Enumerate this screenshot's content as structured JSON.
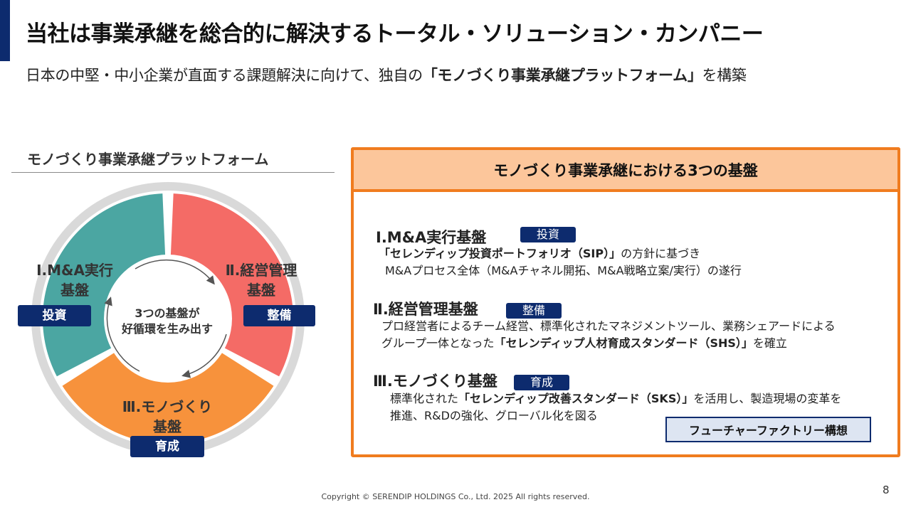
{
  "header": {
    "title": "当社は事業承継を総合的に解決するトータル・ソリューション・カンパニー",
    "subtitle_pre": "日本の中堅・中小企業が直面する課題解決に向けて、独自の",
    "subtitle_bold": "「モノづくり事業承継プラットフォーム」",
    "subtitle_post": "を構築"
  },
  "left": {
    "heading": "モノづくり事業承継プラットフォーム",
    "center_line1": "3つの基盤が",
    "center_line2": "好循環を生み出す",
    "segments": [
      {
        "line1": "Ⅰ.M&A実行",
        "line2": "基盤",
        "badge": "投資",
        "color": "#4ba6a2"
      },
      {
        "line1": "Ⅱ.経営管理",
        "line2": "基盤",
        "badge": "整備",
        "color": "#f46b66"
      },
      {
        "line1": "Ⅲ.モノづくり",
        "line2": "基盤",
        "badge": "育成",
        "color": "#f7923c"
      }
    ],
    "ring_color": "#d9d9d9"
  },
  "right": {
    "header": "モノづくり事業承継における3つの基盤",
    "items": [
      {
        "title": "Ⅰ.M&A実行基盤",
        "tag": "投資",
        "line1_bold": "「セレンディップ投資ポートフォリオ（SIP）」",
        "line1_post": "の方針に基づき",
        "line2": "M&Aプロセス全体（M&Aチャネル開拓、M&A戦略立案/実行）の遂行"
      },
      {
        "title": "Ⅱ.経営管理基盤",
        "tag": "整備",
        "line1": "プロ経営者によるチーム経営、標準化されたマネジメントツール、業務シェアードによる",
        "line2_pre": "グループ一体となった",
        "line2_bold": "「セレンディップ人材育成スタンダード（SHS）」",
        "line2_post": "を確立"
      },
      {
        "title": "Ⅲ.モノづくり基盤",
        "tag": "育成",
        "line1_pre": "標準化された",
        "line1_bold": "「セレンディップ改善スタンダード（SKS）」",
        "line1_post": "を活用し、製造現場の変革を",
        "line2": "推進、R&Dの強化、グローバル化を図る"
      }
    ],
    "future_button": "フューチャーファクトリー構想"
  },
  "colors": {
    "navy": "#0d2b6e",
    "orange": "#f07c1f",
    "header_fill": "#fcc69b"
  },
  "footer": {
    "copyright": "Copyright © SERENDIP HOLDINGS Co., Ltd.  2025 All rights reserved.",
    "page_number": "8"
  }
}
